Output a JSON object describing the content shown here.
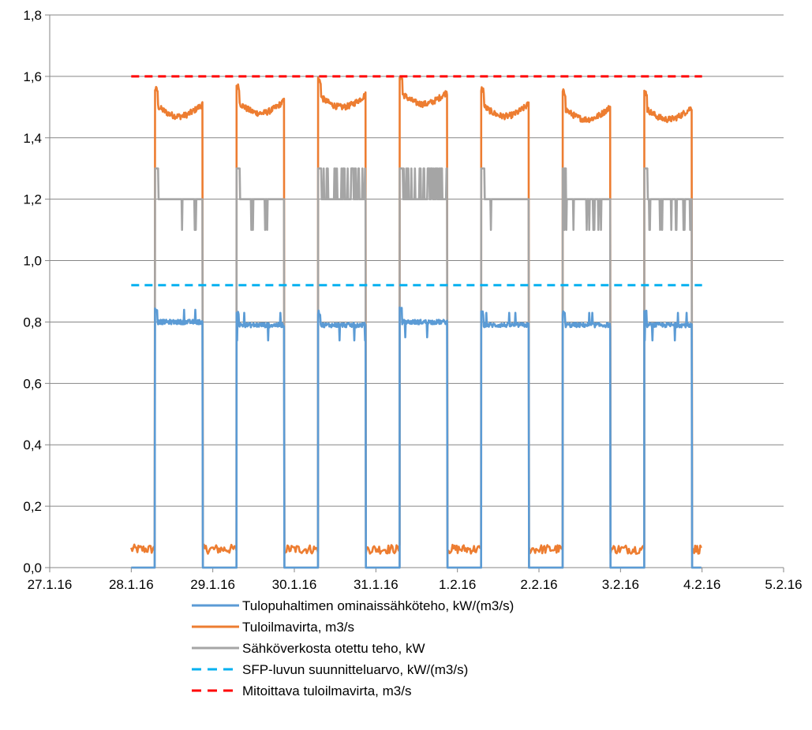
{
  "chart_data": {
    "type": "line",
    "title": "",
    "xlabel": "",
    "ylabel": "",
    "ylim": [
      0,
      1.8
    ],
    "xlim": [
      "27.1.16",
      "5.2.16"
    ],
    "grid": "horizontal",
    "legend_position": "bottom",
    "x_ticks": [
      "27.1.16",
      "28.1.16",
      "29.1.16",
      "30.1.16",
      "31.1.16",
      "1.2.16",
      "2.2.16",
      "3.2.16",
      "4.2.16",
      "5.2.16"
    ],
    "y_ticks": [
      "0,0",
      "0,2",
      "0,4",
      "0,6",
      "0,8",
      "1,0",
      "1,2",
      "1,4",
      "1,6",
      "1,8"
    ],
    "periods": [
      {
        "on_start": "28.1.16 07:00",
        "off_end": "28.1.16 21:00",
        "record_start": "28.1.16 00:00",
        "sfp": 0.8,
        "flow": 1.51,
        "power": 1.2
      },
      {
        "on_start": "29.1.16 07:00",
        "off_end": "29.1.16 21:00",
        "sfp": 0.79,
        "flow": 1.52,
        "power": 1.2
      },
      {
        "on_start": "30.1.16 07:00",
        "off_end": "30.1.16 21:00",
        "sfp": 0.79,
        "flow": 1.54,
        "power": 1.23
      },
      {
        "on_start": "31.1.16 07:00",
        "off_end": "31.1.16 21:00",
        "sfp": 0.8,
        "flow": 1.55,
        "power": 1.25
      },
      {
        "on_start": "1.2.16 07:00",
        "off_end": "1.2.16 21:00",
        "sfp": 0.79,
        "flow": 1.51,
        "power": 1.2
      },
      {
        "on_start": "2.2.16 07:00",
        "off_end": "2.2.16 21:00",
        "sfp": 0.79,
        "flow": 1.5,
        "power": 1.19
      },
      {
        "on_start": "3.2.16 07:00",
        "off_end": "3.2.16 21:00",
        "record_end": "4.2.16 00:00",
        "sfp": 0.79,
        "flow": 1.5,
        "power": 1.18
      }
    ],
    "off_values": {
      "sfp": 0.0,
      "flow": 0.06,
      "power": 0.0
    },
    "series": [
      {
        "name": "Tulopuhaltimen ominaissähköteho, kW/(m3/s)",
        "color": "#5B9BD5",
        "style": "solid",
        "key": "sfp"
      },
      {
        "name": "Tuloilmavirta, m3/s",
        "color": "#ED7D31",
        "style": "solid",
        "key": "flow"
      },
      {
        "name": "Sähköverkosta otettu teho, kW",
        "color": "#A5A5A5",
        "style": "solid",
        "key": "power"
      },
      {
        "name": "SFP-luvun suunnitteluarvo, kW/(m3/s)",
        "color": "#00B0F0",
        "style": "dashed",
        "constant": 0.92,
        "x_range": [
          "28.1.16",
          "4.2.16"
        ]
      },
      {
        "name": "Mitoittava tuloilmavirta, m3/s",
        "color": "#FF0000",
        "style": "dashed",
        "constant": 1.6,
        "x_range": [
          "28.1.16",
          "4.2.16"
        ]
      }
    ]
  }
}
